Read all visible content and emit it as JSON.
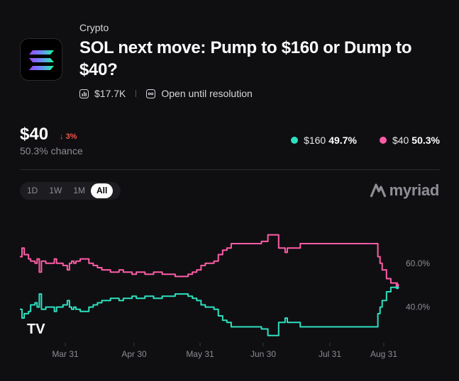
{
  "market": {
    "category": "Crypto",
    "title": "SOL next move: Pump to $160 or Dump to $40?",
    "volume": "$17.7K",
    "status": "Open until resolution"
  },
  "selected": {
    "price": "$40",
    "change": "3%",
    "chance": "50.3% chance"
  },
  "legend": [
    {
      "label": "$160",
      "value": "49.7%",
      "color": "#2ee0c0"
    },
    {
      "label": "$40",
      "value": "50.3%",
      "color": "#ff5ca8"
    }
  ],
  "time_ranges": [
    "1D",
    "1W",
    "1M",
    "All"
  ],
  "active_range": "All",
  "brand": "myriad",
  "colors": {
    "teal": "#2ee0c0",
    "pink": "#ff5ca8",
    "down": "#f0564a",
    "bg": "#0f0f11"
  },
  "chart_data": {
    "type": "line",
    "x_ticks": [
      "Mar 31",
      "Apr 30",
      "May 31",
      "Jun 30",
      "Jul 31",
      "Aug 31"
    ],
    "y_ticks": [
      "60.0%",
      "40.0%"
    ],
    "ylim": [
      25,
      80
    ],
    "series": [
      {
        "name": "$160",
        "color": "#2ee0c0",
        "points": [
          [
            0,
            39
          ],
          [
            1,
            35
          ],
          [
            2,
            37
          ],
          [
            4,
            38
          ],
          [
            5,
            41
          ],
          [
            7,
            42
          ],
          [
            8,
            40
          ],
          [
            9,
            46
          ],
          [
            10,
            39
          ],
          [
            12,
            40
          ],
          [
            14,
            40
          ],
          [
            16,
            38
          ],
          [
            17,
            40
          ],
          [
            19,
            40
          ],
          [
            20,
            41
          ],
          [
            22,
            43
          ],
          [
            23,
            40
          ],
          [
            24,
            39
          ],
          [
            25,
            40
          ],
          [
            26,
            39
          ],
          [
            28,
            38
          ],
          [
            30,
            38
          ],
          [
            32,
            40
          ],
          [
            34,
            41
          ],
          [
            36,
            42
          ],
          [
            38,
            43
          ],
          [
            40,
            43
          ],
          [
            42,
            44
          ],
          [
            44,
            44
          ],
          [
            46,
            43
          ],
          [
            48,
            44
          ],
          [
            50,
            44
          ],
          [
            52,
            45
          ],
          [
            54,
            44
          ],
          [
            56,
            44
          ],
          [
            58,
            45
          ],
          [
            60,
            45
          ],
          [
            62,
            44
          ],
          [
            64,
            44
          ],
          [
            66,
            45
          ],
          [
            68,
            45
          ],
          [
            70,
            45
          ],
          [
            72,
            46
          ],
          [
            74,
            46
          ],
          [
            76,
            46
          ],
          [
            78,
            45
          ],
          [
            80,
            44
          ],
          [
            82,
            43
          ],
          [
            84,
            41
          ],
          [
            86,
            40
          ],
          [
            88,
            40
          ],
          [
            90,
            39
          ],
          [
            92,
            36
          ],
          [
            94,
            34
          ],
          [
            96,
            33
          ],
          [
            98,
            31
          ],
          [
            100,
            31
          ],
          [
            104,
            31
          ],
          [
            108,
            31
          ],
          [
            112,
            30
          ],
          [
            114,
            30
          ],
          [
            115,
            27
          ],
          [
            118,
            27
          ],
          [
            120,
            33
          ],
          [
            122,
            33
          ],
          [
            123,
            35
          ],
          [
            124,
            33
          ],
          [
            130,
            31
          ],
          [
            140,
            31
          ],
          [
            150,
            31
          ],
          [
            160,
            31
          ],
          [
            165,
            31
          ],
          [
            166,
            37
          ],
          [
            167,
            40
          ],
          [
            168,
            43
          ],
          [
            170,
            47
          ],
          [
            172,
            49
          ],
          [
            174,
            49
          ],
          [
            175,
            49
          ]
        ]
      },
      {
        "name": "$40",
        "color": "#ff5ca8",
        "points": [
          [
            0,
            63
          ],
          [
            1,
            67
          ],
          [
            2,
            64
          ],
          [
            4,
            62
          ],
          [
            5,
            61
          ],
          [
            7,
            60
          ],
          [
            8,
            62
          ],
          [
            9,
            56
          ],
          [
            10,
            61
          ],
          [
            12,
            60
          ],
          [
            14,
            60
          ],
          [
            16,
            62
          ],
          [
            17,
            60
          ],
          [
            19,
            60
          ],
          [
            20,
            59
          ],
          [
            22,
            57
          ],
          [
            23,
            60
          ],
          [
            24,
            61
          ],
          [
            25,
            60
          ],
          [
            26,
            61
          ],
          [
            28,
            62
          ],
          [
            30,
            62
          ],
          [
            32,
            60
          ],
          [
            34,
            59
          ],
          [
            36,
            58
          ],
          [
            38,
            57
          ],
          [
            40,
            57
          ],
          [
            42,
            56
          ],
          [
            44,
            56
          ],
          [
            46,
            57
          ],
          [
            48,
            56
          ],
          [
            50,
            56
          ],
          [
            52,
            55
          ],
          [
            54,
            56
          ],
          [
            56,
            56
          ],
          [
            58,
            55
          ],
          [
            60,
            55
          ],
          [
            62,
            56
          ],
          [
            64,
            56
          ],
          [
            66,
            55
          ],
          [
            68,
            55
          ],
          [
            70,
            55
          ],
          [
            72,
            54
          ],
          [
            74,
            54
          ],
          [
            76,
            54
          ],
          [
            78,
            55
          ],
          [
            80,
            56
          ],
          [
            82,
            57
          ],
          [
            84,
            59
          ],
          [
            86,
            60
          ],
          [
            88,
            60
          ],
          [
            90,
            61
          ],
          [
            92,
            64
          ],
          [
            94,
            66
          ],
          [
            96,
            67
          ],
          [
            98,
            69
          ],
          [
            100,
            69
          ],
          [
            104,
            69
          ],
          [
            108,
            69
          ],
          [
            112,
            70
          ],
          [
            114,
            70
          ],
          [
            115,
            73
          ],
          [
            118,
            73
          ],
          [
            120,
            67
          ],
          [
            122,
            67
          ],
          [
            123,
            65
          ],
          [
            124,
            67
          ],
          [
            130,
            69
          ],
          [
            140,
            69
          ],
          [
            150,
            69
          ],
          [
            160,
            69
          ],
          [
            165,
            69
          ],
          [
            166,
            63
          ],
          [
            167,
            60
          ],
          [
            168,
            57
          ],
          [
            170,
            53
          ],
          [
            172,
            51
          ],
          [
            174,
            51
          ],
          [
            175,
            50
          ]
        ]
      }
    ]
  }
}
